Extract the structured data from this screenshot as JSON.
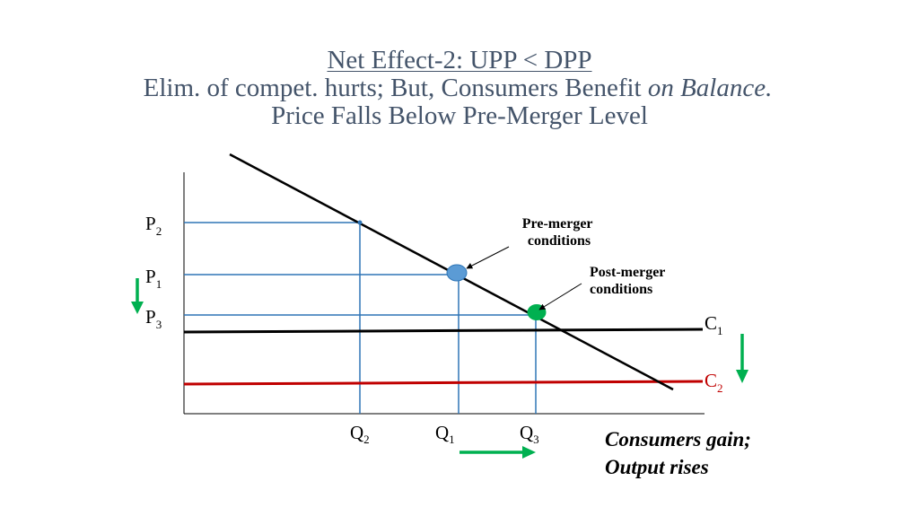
{
  "title": {
    "line1": "Net Effect-2: UPP < DPP",
    "line2_prefix": "Elim. of compet. hurts; But, Consumers Benefit ",
    "line2_italic": "on Balance.",
    "line3": "Price Falls Below Pre-Merger Level"
  },
  "axis_labels": {
    "p2": {
      "base": "P",
      "sub": "2"
    },
    "p1": {
      "base": "P",
      "sub": "1"
    },
    "p3": {
      "base": "P",
      "sub": "3"
    },
    "q2": {
      "base": "Q",
      "sub": "2"
    },
    "q1": {
      "base": "Q",
      "sub": "1"
    },
    "q3": {
      "base": "Q",
      "sub": "3"
    },
    "c1": {
      "base": "C",
      "sub": "1"
    },
    "c2": {
      "base": "C",
      "sub": "2"
    }
  },
  "annotations": {
    "pre_merger": [
      "Pre-merger",
      "conditions"
    ],
    "post_merger": [
      "Post-merger",
      "conditions"
    ]
  },
  "conclusion": {
    "line1": "Consumers gain;",
    "line2": "Output rises"
  },
  "colors": {
    "title": "#44546a",
    "guide_lines": "#2e75b6",
    "demand": "#000000",
    "c1": "#000000",
    "c2": "#c00000",
    "c2_label": "#c00000",
    "pre_merger_point": "#5b9bd5",
    "post_merger_point": "#00b050",
    "arrows": "#00b050"
  }
}
